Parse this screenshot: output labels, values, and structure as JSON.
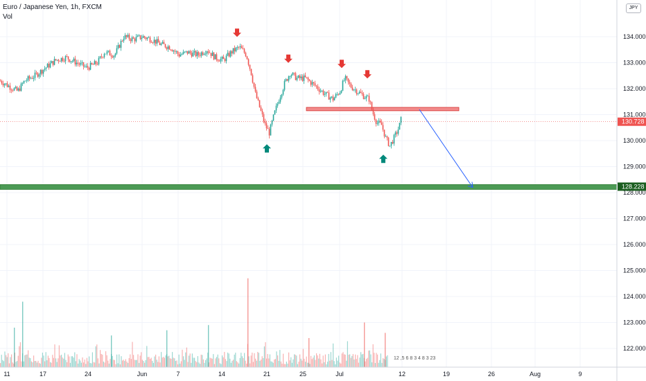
{
  "header": {
    "symbol": "Euro / Japanese Yen, 1h, FXCM",
    "volume_label": "Vol"
  },
  "currency_button": "JPY",
  "events_strip": "12 ,5  6 8  3  4 8 3 23",
  "colors": {
    "up": "#26a69a",
    "down": "#ef5350",
    "current_price_line": "#ef5350",
    "resistance_zone": "#f28b8b",
    "support_zone": "#4c9a55",
    "projection_arrow": "#2962ff",
    "sell_arrow": "#e53935",
    "buy_arrow": "#00897b"
  },
  "chart_data": {
    "type": "candlestick",
    "symbol": "EURJPY",
    "timeframe": "1h",
    "y_axis": {
      "ticks": [
        134.0,
        133.0,
        132.0,
        131.0,
        130.0,
        129.0,
        128.0,
        127.0,
        126.0,
        125.0,
        124.0,
        123.0,
        122.0
      ],
      "tick_labels": [
        "134.000",
        "133.000",
        "132.000",
        "131.000",
        "130.000",
        "129.000",
        "128.000",
        "127.000",
        "126.000",
        "125.000",
        "124.000",
        "123.000",
        "122.000"
      ],
      "range": [
        121.3,
        134.9
      ]
    },
    "x_axis": {
      "tick_labels": [
        "11",
        "17",
        "24",
        "Jun",
        "7",
        "14",
        "21",
        "25",
        "Jul",
        "12",
        "19",
        "26",
        "Aug",
        "9"
      ]
    },
    "current_price": 130.728,
    "current_price_label": "130.728",
    "support_level": 128.228,
    "support_label": "128.228",
    "resistance_zone": [
      131.15,
      131.28
    ],
    "price_path": [
      [
        0,
        132.3
      ],
      [
        12,
        132.1
      ],
      [
        25,
        131.9
      ],
      [
        35,
        132.3
      ],
      [
        50,
        132.5
      ],
      [
        65,
        132.8
      ],
      [
        80,
        133.1
      ],
      [
        95,
        133.2
      ],
      [
        110,
        133.0
      ],
      [
        125,
        132.8
      ],
      [
        140,
        133.0
      ],
      [
        150,
        133.4
      ],
      [
        165,
        133.3
      ],
      [
        178,
        134.0
      ],
      [
        192,
        133.9
      ],
      [
        205,
        134.0
      ],
      [
        218,
        133.9
      ],
      [
        232,
        133.7
      ],
      [
        245,
        133.6
      ],
      [
        258,
        133.3
      ],
      [
        270,
        133.4
      ],
      [
        285,
        133.3
      ],
      [
        298,
        133.5
      ],
      [
        310,
        133.2
      ],
      [
        322,
        133.1
      ],
      [
        333,
        133.4
      ],
      [
        345,
        133.6
      ],
      [
        355,
        133.3
      ],
      [
        362,
        132.6
      ],
      [
        368,
        131.8
      ],
      [
        375,
        131.2
      ],
      [
        382,
        130.6
      ],
      [
        388,
        130.3
      ],
      [
        395,
        131.0
      ],
      [
        402,
        131.6
      ],
      [
        410,
        132.2
      ],
      [
        418,
        132.6
      ],
      [
        428,
        132.4
      ],
      [
        440,
        132.4
      ],
      [
        455,
        132.1
      ],
      [
        468,
        131.8
      ],
      [
        480,
        131.6
      ],
      [
        490,
        131.9
      ],
      [
        497,
        132.4
      ],
      [
        505,
        132.1
      ],
      [
        515,
        131.9
      ],
      [
        525,
        131.7
      ],
      [
        532,
        131.6
      ],
      [
        537,
        131.1
      ],
      [
        543,
        130.7
      ],
      [
        550,
        130.6
      ],
      [
        556,
        130.1
      ],
      [
        562,
        129.8
      ],
      [
        568,
        130.1
      ],
      [
        575,
        130.5
      ],
      [
        578,
        130.8
      ]
    ],
    "volume_spikes": [
      [
        32,
        123.8
      ],
      [
        357,
        124.7
      ],
      [
        525,
        123.0
      ],
      [
        300,
        122.9
      ],
      [
        240,
        122.7
      ],
      [
        160,
        122.5
      ],
      [
        20,
        122.8
      ],
      [
        445,
        122.4
      ],
      [
        555,
        122.6
      ]
    ],
    "annotations": {
      "sell_arrows": [
        [
          342,
          134.1
        ],
        [
          416,
          133.1
        ],
        [
          493,
          132.9
        ],
        [
          530,
          132.5
        ]
      ],
      "buy_arrows": [
        [
          385,
          129.7
        ],
        [
          553,
          129.3
        ]
      ],
      "projection": {
        "from": [
          605,
          131.2
        ],
        "to": [
          682,
          128.2
        ]
      }
    }
  }
}
